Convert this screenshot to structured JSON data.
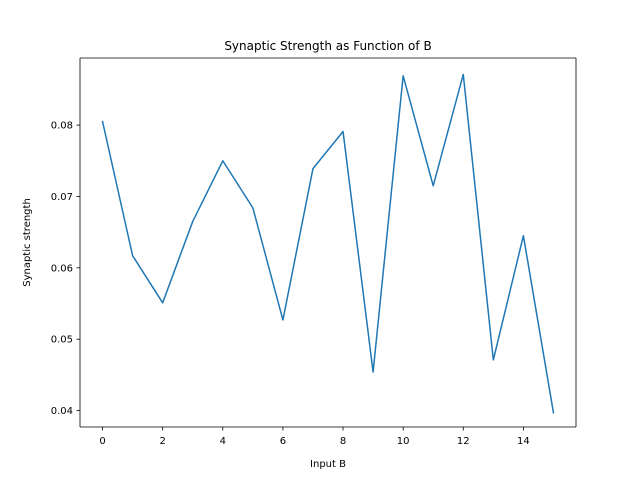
{
  "chart_data": {
    "type": "line",
    "title": "Synaptic Strength as Function of B",
    "xlabel": "Input B",
    "ylabel": "Synaptic strength",
    "xlim": [
      -0.75,
      15.75
    ],
    "ylim": [
      0.0377,
      0.0894
    ],
    "xticks": [
      0,
      2,
      4,
      6,
      8,
      10,
      12,
      14
    ],
    "xtick_labels": [
      "0",
      "2",
      "4",
      "6",
      "8",
      "10",
      "12",
      "14"
    ],
    "yticks": [
      0.04,
      0.05,
      0.06,
      0.07,
      0.08
    ],
    "ytick_labels": [
      "0.04",
      "0.05",
      "0.06",
      "0.07",
      "0.08"
    ],
    "grid": false,
    "series": [
      {
        "color": "#1f77b4",
        "x": [
          0,
          1,
          2,
          3,
          4,
          5,
          6,
          7,
          8,
          9,
          10,
          11,
          12,
          13,
          14,
          15
        ],
        "values": [
          0.0805,
          0.0617,
          0.0551,
          0.0665,
          0.075,
          0.0684,
          0.0527,
          0.0739,
          0.0791,
          0.0454,
          0.0869,
          0.0715,
          0.0871,
          0.0471,
          0.0645,
          0.0397
        ]
      }
    ]
  }
}
